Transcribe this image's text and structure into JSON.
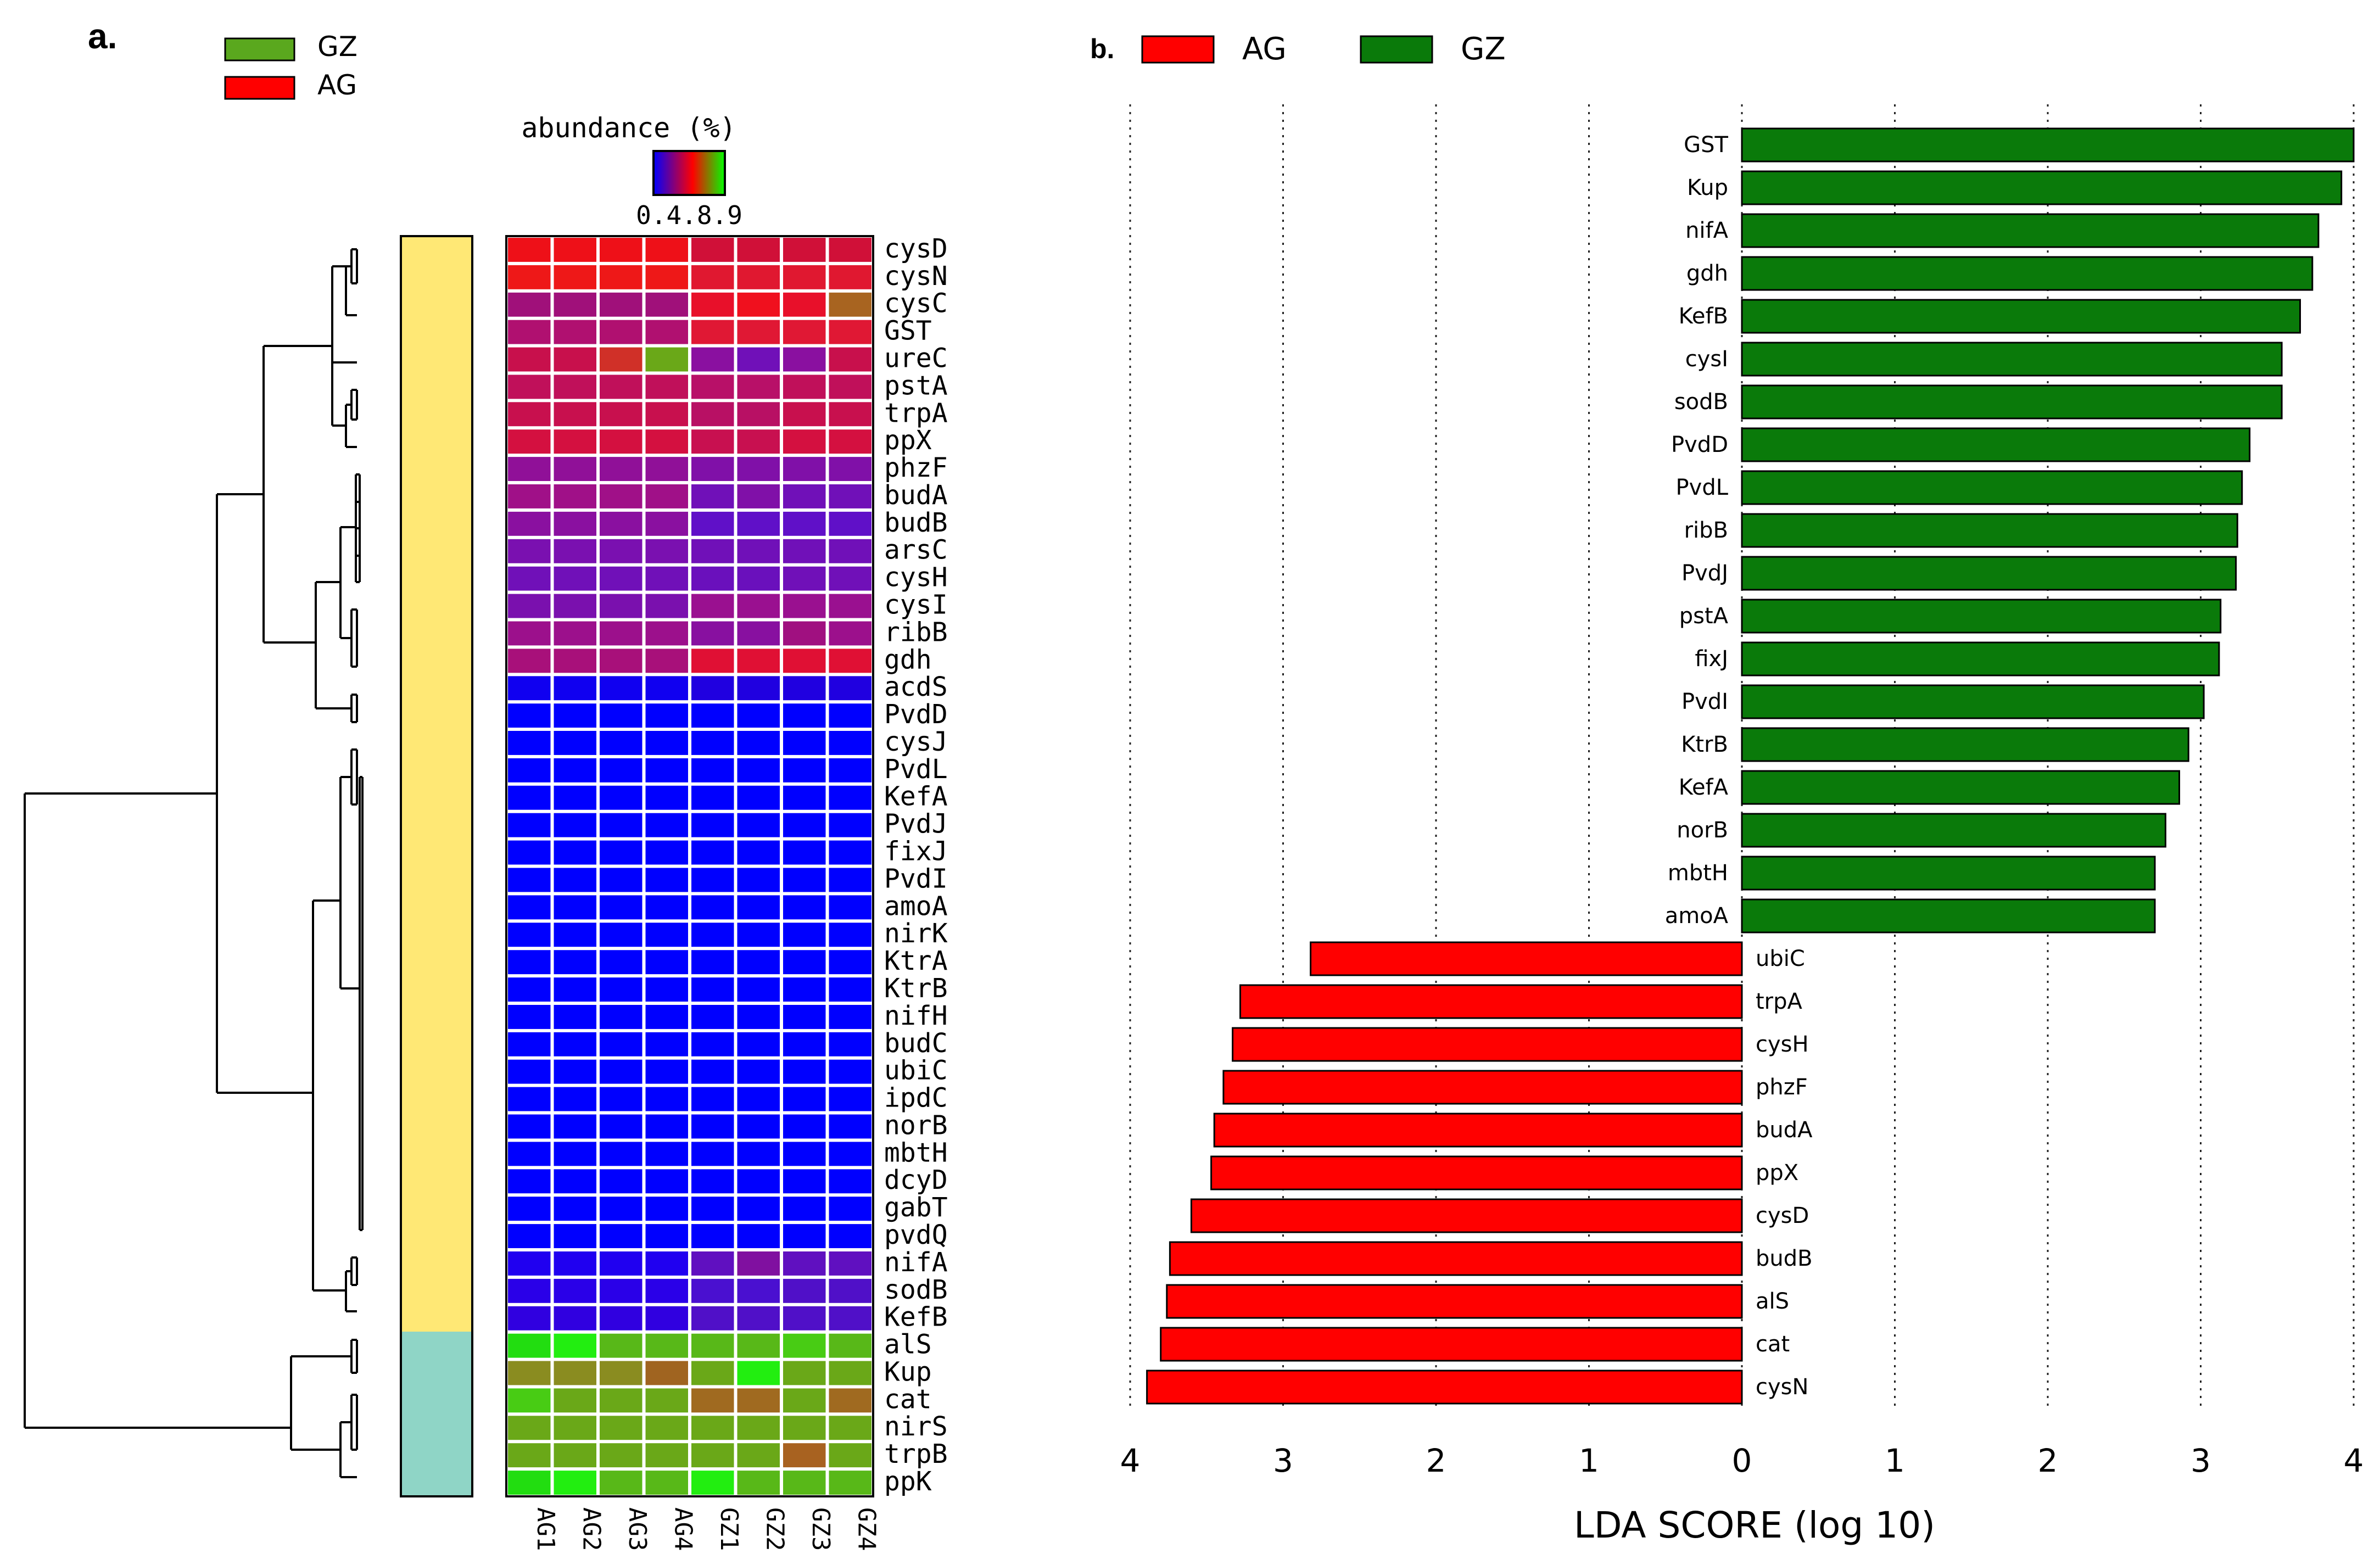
{
  "panel_a": {
    "label": "a.",
    "legend": [
      {
        "label": "GZ",
        "color": "#5aa81e"
      },
      {
        "label": "AG",
        "color": "#ff0000"
      }
    ],
    "colorbar": {
      "title": "abundance (%)",
      "tick_labels": "0.4.8.9",
      "colors": [
        "#0000ff",
        "#ff0000",
        "#00ff00"
      ]
    },
    "cluster_colors": {
      "upper": "#ffe875",
      "lower": "#8fd5c6"
    },
    "samples": [
      "AG1",
      "AG2",
      "AG3",
      "AG4",
      "GZ1",
      "GZ2",
      "GZ3",
      "GZ4"
    ]
  },
  "chart_data": [
    {
      "type": "heatmap",
      "title": "abundance (%)",
      "columns": [
        "AG1",
        "AG2",
        "AG3",
        "AG4",
        "GZ1",
        "GZ2",
        "GZ3",
        "GZ4"
      ],
      "rows": [
        "cysD",
        "cysN",
        "cysC",
        "GST",
        "ureC",
        "pstA",
        "trpA",
        "ppX",
        "phzF",
        "budA",
        "budB",
        "arsC",
        "cysH",
        "cysI",
        "ribB",
        "gdh",
        "acdS",
        "PvdD",
        "cysJ",
        "PvdL",
        "KefA",
        "PvdJ",
        "fixJ",
        "PvdI",
        "amoA",
        "nirK",
        "KtrA",
        "KtrB",
        "nifH",
        "budC",
        "ubiC",
        "ipdC",
        "norB",
        "mbtH",
        "dcyD",
        "gabT",
        "pvdQ",
        "nifA",
        "sodB",
        "KefB",
        "alS",
        "Kup",
        "cat",
        "nirS",
        "trpB",
        "ppK"
      ],
      "cell_colors": [
        [
          "#ee1018",
          "#ee1018",
          "#ee1018",
          "#ee1018",
          "#d01038",
          "#d01038",
          "#d01038",
          "#d01038"
        ],
        [
          "#ee1818",
          "#ee1818",
          "#ee1818",
          "#ee1818",
          "#e01830",
          "#e01830",
          "#e01830",
          "#e01830"
        ],
        [
          "#a0107a",
          "#a0107a",
          "#a0107a",
          "#a0107a",
          "#e8102a",
          "#f0101e",
          "#e8102a",
          "#a86420"
        ],
        [
          "#b01070",
          "#b01070",
          "#b01070",
          "#b01070",
          "#e01834",
          "#e01834",
          "#e01834",
          "#e01834"
        ],
        [
          "#c8104c",
          "#c8104c",
          "#d03028",
          "#6aa818",
          "#8a10a0",
          "#7010b8",
          "#8a10a0",
          "#c8104c"
        ],
        [
          "#c0105a",
          "#c0105a",
          "#c0105a",
          "#c0105a",
          "#b81068",
          "#b81068",
          "#c0105a",
          "#c0105a"
        ],
        [
          "#c8104e",
          "#c8104e",
          "#c8104e",
          "#c8104e",
          "#b81064",
          "#b81064",
          "#c8104e",
          "#c8104e"
        ],
        [
          "#d41040",
          "#d41040",
          "#d41040",
          "#d41040",
          "#c81050",
          "#c81050",
          "#d41040",
          "#d41040"
        ],
        [
          "#901098",
          "#901098",
          "#901098",
          "#901098",
          "#8010a8",
          "#8010a8",
          "#8010a8",
          "#8010a8"
        ],
        [
          "#a01088",
          "#a01088",
          "#a01088",
          "#a01088",
          "#7010b8",
          "#8010a8",
          "#7010b8",
          "#7010b8"
        ],
        [
          "#8a10a0",
          "#8a10a0",
          "#8a10a0",
          "#8a10a0",
          "#6010c8",
          "#6010c8",
          "#6010c8",
          "#6010c8"
        ],
        [
          "#7a10b0",
          "#7a10b0",
          "#7a10b0",
          "#7a10b0",
          "#7010b8",
          "#7010b8",
          "#7010b8",
          "#7010b8"
        ],
        [
          "#7010b8",
          "#7010b8",
          "#7010b8",
          "#7010b8",
          "#6a10bc",
          "#6a10bc",
          "#7010b8",
          "#7010b8"
        ],
        [
          "#7a10ae",
          "#7a10ae",
          "#7a10ae",
          "#7a10ae",
          "#9a1090",
          "#9a1090",
          "#9a1090",
          "#9a1090"
        ],
        [
          "#9c108c",
          "#9c108c",
          "#9c108c",
          "#9c108c",
          "#8810a0",
          "#8810a0",
          "#a01080",
          "#9c108c"
        ],
        [
          "#a8107a",
          "#a8107a",
          "#a8107a",
          "#a8107a",
          "#e01034",
          "#e01034",
          "#e01034",
          "#e01034"
        ],
        [
          "#1000f0",
          "#1000f0",
          "#1000f0",
          "#1000f0",
          "#2000e0",
          "#2000e0",
          "#2000e0",
          "#2000e0"
        ],
        [
          "#0000ff",
          "#0000ff",
          "#0000ff",
          "#0000ff",
          "#0000ff",
          "#0000ff",
          "#0000ff",
          "#0000ff"
        ],
        [
          "#0000ff",
          "#0000ff",
          "#0000ff",
          "#0000ff",
          "#0000ff",
          "#0000ff",
          "#0000ff",
          "#0000ff"
        ],
        [
          "#0000ff",
          "#0000ff",
          "#0000ff",
          "#0000ff",
          "#0000ff",
          "#0000ff",
          "#0000ff",
          "#0000ff"
        ],
        [
          "#0000ff",
          "#0000ff",
          "#0000ff",
          "#0000ff",
          "#0000ff",
          "#0000ff",
          "#0000ff",
          "#0000ff"
        ],
        [
          "#0000ff",
          "#0000ff",
          "#0000ff",
          "#0000ff",
          "#0000ff",
          "#0000ff",
          "#0000ff",
          "#0000ff"
        ],
        [
          "#0000ff",
          "#0000ff",
          "#0000ff",
          "#0000ff",
          "#0000ff",
          "#0000ff",
          "#0000ff",
          "#0000ff"
        ],
        [
          "#0000ff",
          "#0000ff",
          "#0000ff",
          "#0000ff",
          "#0000ff",
          "#0000ff",
          "#0000ff",
          "#0000ff"
        ],
        [
          "#0000ff",
          "#0000ff",
          "#0000ff",
          "#0000ff",
          "#0000ff",
          "#0000ff",
          "#0000ff",
          "#0000ff"
        ],
        [
          "#0000ff",
          "#0000ff",
          "#0000ff",
          "#0000ff",
          "#0000ff",
          "#0000ff",
          "#0000ff",
          "#0000ff"
        ],
        [
          "#0000ff",
          "#0000ff",
          "#0000ff",
          "#0000ff",
          "#0000ff",
          "#0000ff",
          "#0000ff",
          "#0000ff"
        ],
        [
          "#0000ff",
          "#0000ff",
          "#0000ff",
          "#0000ff",
          "#0000ff",
          "#0000ff",
          "#0000ff",
          "#0000ff"
        ],
        [
          "#0000ff",
          "#0000ff",
          "#0000ff",
          "#0000ff",
          "#0000ff",
          "#0000ff",
          "#0000ff",
          "#0000ff"
        ],
        [
          "#0000ff",
          "#0000ff",
          "#0000ff",
          "#0000ff",
          "#0000ff",
          "#0000ff",
          "#0000ff",
          "#0000ff"
        ],
        [
          "#0000ff",
          "#0000ff",
          "#0000ff",
          "#0000ff",
          "#0000ff",
          "#0000ff",
          "#0000ff",
          "#0000ff"
        ],
        [
          "#0000ff",
          "#0000ff",
          "#0000ff",
          "#0000ff",
          "#0000ff",
          "#0000ff",
          "#0000ff",
          "#0000ff"
        ],
        [
          "#0000ff",
          "#0000ff",
          "#0000ff",
          "#0000ff",
          "#0000ff",
          "#0000ff",
          "#0000ff",
          "#0000ff"
        ],
        [
          "#0000ff",
          "#0000ff",
          "#0000ff",
          "#0000ff",
          "#0000ff",
          "#0000ff",
          "#0000ff",
          "#0000ff"
        ],
        [
          "#0000ff",
          "#0000ff",
          "#0000ff",
          "#0000ff",
          "#0000ff",
          "#0000ff",
          "#0000ff",
          "#0000ff"
        ],
        [
          "#0000ff",
          "#0000ff",
          "#0000ff",
          "#0000ff",
          "#0000ff",
          "#0000ff",
          "#0000ff",
          "#0000ff"
        ],
        [
          "#0000ff",
          "#0000ff",
          "#0000ff",
          "#0000ff",
          "#0000ff",
          "#0000ff",
          "#0000ff",
          "#0000ff"
        ],
        [
          "#2000f0",
          "#2000f0",
          "#2000f0",
          "#2000f0",
          "#6010c0",
          "#8010a0",
          "#6010c0",
          "#6010c0"
        ],
        [
          "#2a00e8",
          "#2a00e8",
          "#2a00e8",
          "#2a00e8",
          "#4a10d0",
          "#4a10d0",
          "#5010c8",
          "#5010c8"
        ],
        [
          "#3000e0",
          "#3000e0",
          "#3000e0",
          "#3000e0",
          "#5010c8",
          "#5010c8",
          "#5010c8",
          "#5010c8"
        ],
        [
          "#22dd10",
          "#22ee10",
          "#58b818",
          "#58b818",
          "#58b818",
          "#58b818",
          "#48cc14",
          "#58b818"
        ],
        [
          "#8a8c20",
          "#8a8c20",
          "#8a8c20",
          "#a06420",
          "#6aa818",
          "#22ee10",
          "#6aa818",
          "#6aa818"
        ],
        [
          "#48cc14",
          "#6aa818",
          "#6aa818",
          "#6aa818",
          "#a06a20",
          "#a06a20",
          "#6aa818",
          "#a06a20"
        ],
        [
          "#6aa818",
          "#6aa818",
          "#6aa818",
          "#6aa818",
          "#6aa818",
          "#6aa818",
          "#6aa818",
          "#6aa818"
        ],
        [
          "#6aa818",
          "#6aa818",
          "#6aa818",
          "#6aa818",
          "#6aa818",
          "#6aa818",
          "#a86220",
          "#6aa818"
        ],
        [
          "#22dd10",
          "#22ee10",
          "#58b818",
          "#58b818",
          "#22ee10",
          "#58b818",
          "#58b818",
          "#58b818"
        ]
      ],
      "row_clusters": [
        {
          "name": "upper",
          "rows": 40
        },
        {
          "name": "lower",
          "rows": 6
        }
      ],
      "colorbar_label": "abundance (%)"
    },
    {
      "type": "bar",
      "orientation": "horizontal",
      "title": "",
      "xlabel": "LDA SCORE (log 10)",
      "ylabel": "",
      "xlim": [
        -4,
        4
      ],
      "x_ticks": [
        "4",
        "3",
        "2",
        "1",
        "0",
        "1",
        "2",
        "3",
        "4"
      ],
      "grid": "vertical dotted",
      "legend": [
        {
          "label": "AG",
          "color": "#ff0000"
        },
        {
          "label": "GZ",
          "color": "#0a7a0a"
        }
      ],
      "series": [
        {
          "name": "GZ",
          "color": "#0a7a0a",
          "categories": [
            "GST",
            "Kup",
            "nifA",
            "gdh",
            "KefB",
            "cysI",
            "sodB",
            "PvdD",
            "PvdL",
            "ribB",
            "PvdJ",
            "pstA",
            "fixJ",
            "PvdI",
            "KtrB",
            "KefA",
            "norB",
            "mbtH",
            "amoA"
          ],
          "values": [
            4.0,
            3.92,
            3.77,
            3.73,
            3.65,
            3.53,
            3.53,
            3.32,
            3.27,
            3.24,
            3.23,
            3.13,
            3.12,
            3.02,
            2.92,
            2.86,
            2.77,
            2.7,
            2.7
          ]
        },
        {
          "name": "AG",
          "color": "#ff0000",
          "categories": [
            "ubiC",
            "trpA",
            "cysH",
            "phzF",
            "budA",
            "ppX",
            "cysD",
            "budB",
            "alS",
            "cat",
            "cysN"
          ],
          "values": [
            2.82,
            3.28,
            3.33,
            3.39,
            3.45,
            3.47,
            3.6,
            3.74,
            3.76,
            3.8,
            3.89
          ]
        }
      ]
    }
  ],
  "panel_b": {
    "label": "b.",
    "legend": [
      {
        "label": "AG",
        "color": "#ff0000"
      },
      {
        "label": "GZ",
        "color": "#0a7a0a"
      }
    ],
    "xlabel": "LDA SCORE (log 10)"
  }
}
